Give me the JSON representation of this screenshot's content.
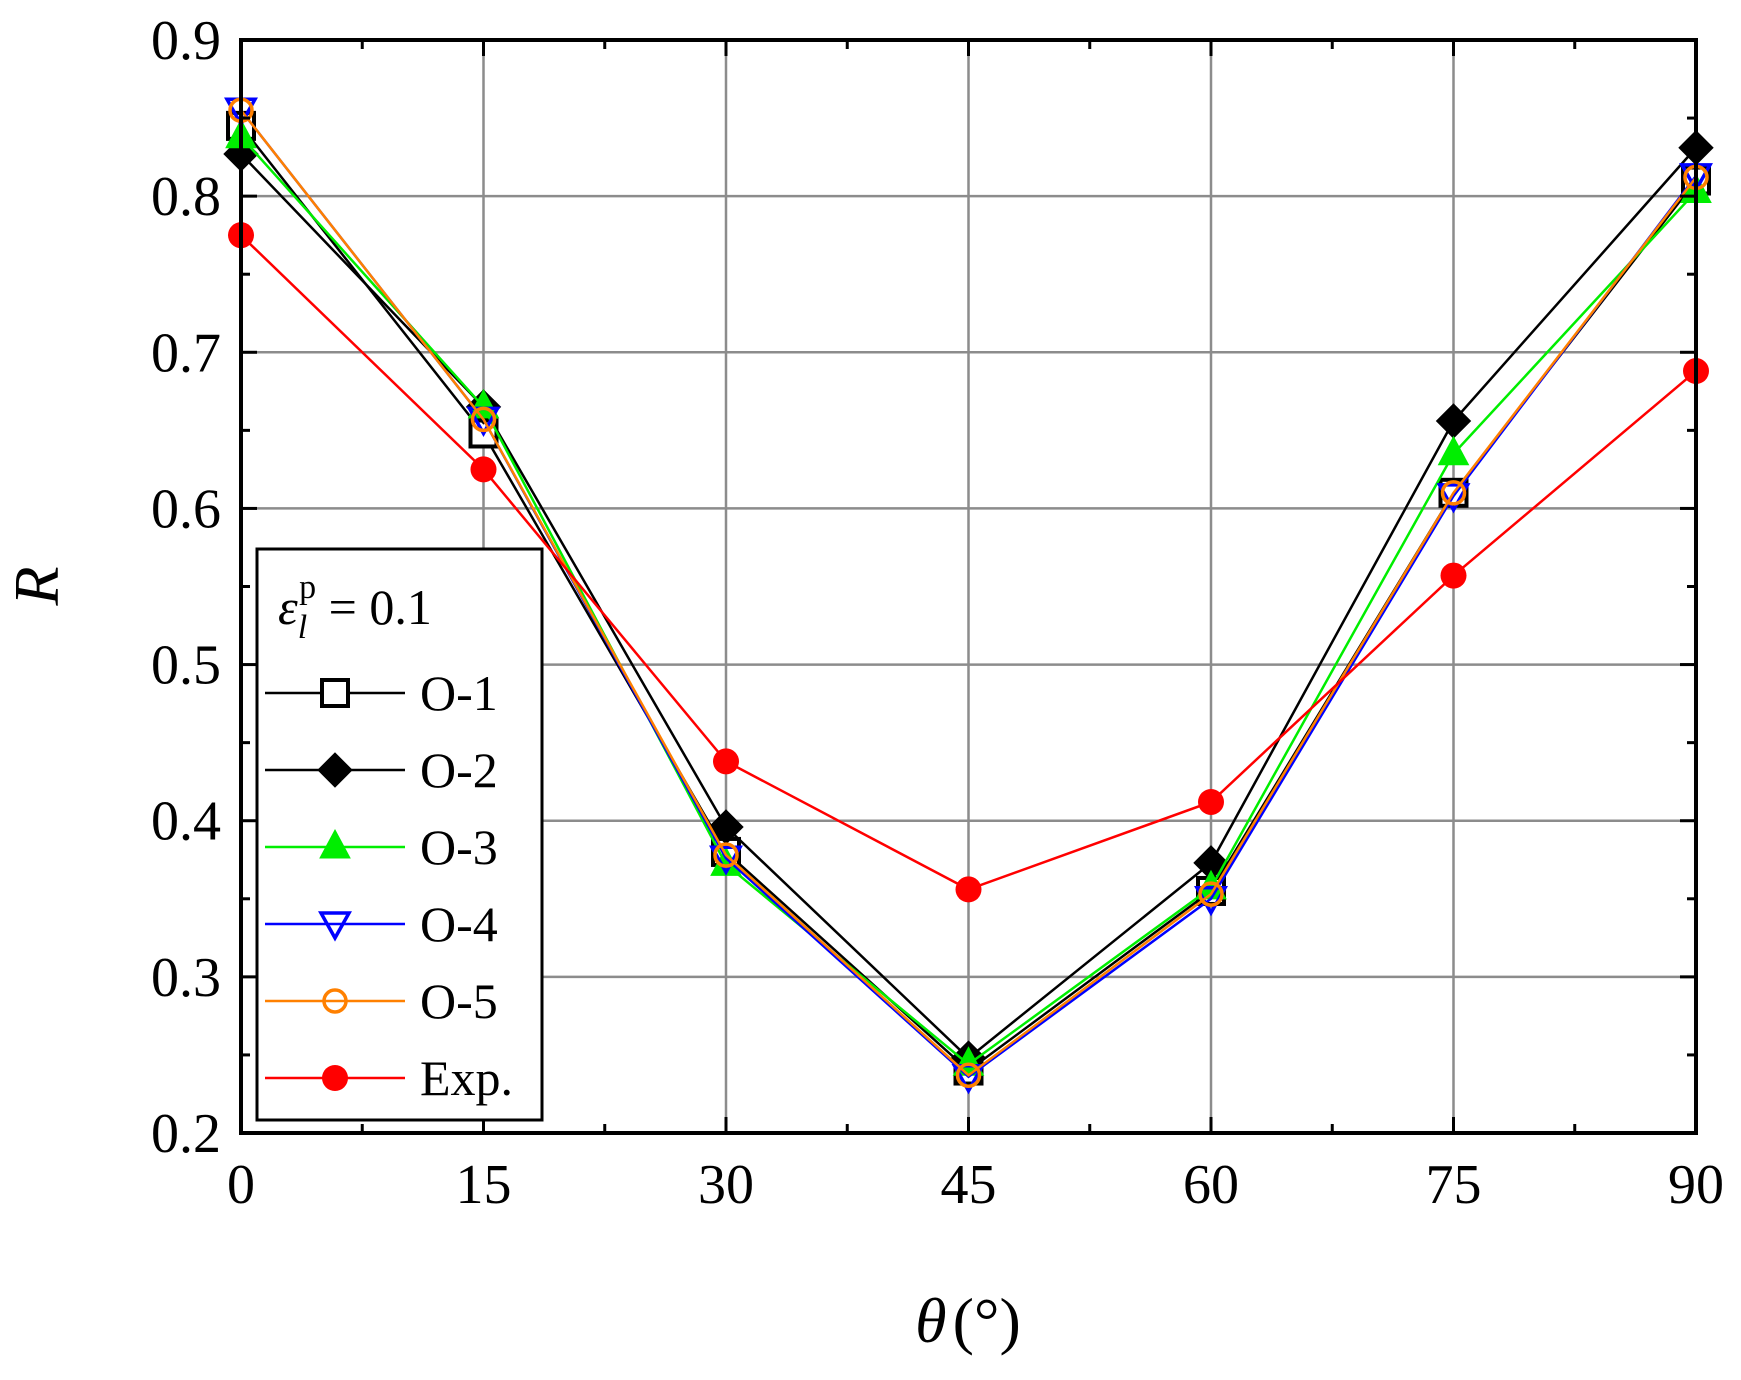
{
  "chart_data": {
    "type": "line",
    "title": "",
    "xlabel": "θ",
    "xlabel_unit": "(°)",
    "ylabel": "R",
    "x": [
      0,
      15,
      30,
      45,
      60,
      75,
      90
    ],
    "xticks": [
      "0",
      "15",
      "30",
      "45",
      "60",
      "75",
      "90"
    ],
    "yticks": [
      "0.2",
      "0.3",
      "0.4",
      "0.5",
      "0.6",
      "0.7",
      "0.8",
      "0.9"
    ],
    "xlim": [
      0,
      90
    ],
    "ylim": [
      0.2,
      0.9
    ],
    "grid": true,
    "legend_position": "left",
    "legend_title": {
      "symbol": "ε",
      "subscript": "l",
      "superscript": "p",
      "rest": " = 0.1"
    },
    "series": [
      {
        "name": "O-1",
        "color": "#000000",
        "marker": "open-square",
        "values": [
          0.845,
          0.648,
          0.38,
          0.24,
          0.355,
          0.61,
          0.81
        ]
      },
      {
        "name": "O-2",
        "color": "#000000",
        "marker": "filled-diamond",
        "values": [
          0.827,
          0.665,
          0.396,
          0.248,
          0.373,
          0.656,
          0.831
        ]
      },
      {
        "name": "O-3",
        "color": "#00ee00",
        "marker": "filled-triangle-up",
        "values": [
          0.838,
          0.665,
          0.372,
          0.244,
          0.357,
          0.635,
          0.803
        ]
      },
      {
        "name": "O-4",
        "color": "#0000ff",
        "marker": "open-triangle-down",
        "values": [
          0.855,
          0.657,
          0.376,
          0.236,
          0.35,
          0.608,
          0.813
        ]
      },
      {
        "name": "O-5",
        "color": "#ff8000",
        "marker": "open-circle",
        "values": [
          0.855,
          0.657,
          0.378,
          0.237,
          0.353,
          0.61,
          0.812
        ]
      },
      {
        "name": "Exp.",
        "color": "#ff0000",
        "marker": "filled-circle",
        "values": [
          0.775,
          0.625,
          0.438,
          0.356,
          0.412,
          0.557,
          0.688
        ]
      }
    ]
  }
}
